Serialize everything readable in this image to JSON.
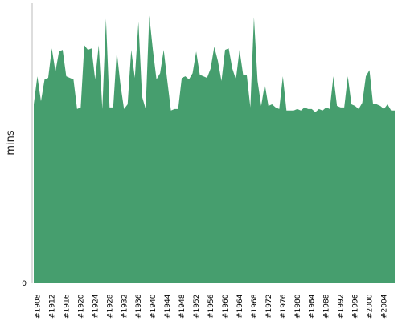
{
  "chart_data": {
    "type": "area",
    "title": "",
    "xlabel": "",
    "ylabel": "mins",
    "color": "#469e6e",
    "grid": false,
    "legend": "none",
    "ylim": [
      0,
      180
    ],
    "y_tick_labels": [
      "0"
    ],
    "x_tick_labels": [
      "#1908",
      "#1912",
      "#1916",
      "#1920",
      "#1924",
      "#1928",
      "#1932",
      "#1936",
      "#1940",
      "#1944",
      "#1948",
      "#1952",
      "#1956",
      "#1960",
      "#1964",
      "#1968",
      "#1972",
      "#1976",
      "#1980",
      "#1984",
      "#1988",
      "#1992",
      "#1996",
      "#2000",
      "#2004"
    ],
    "x_start": 1907,
    "x_end": 2007,
    "points": [
      [
        1907,
        115
      ],
      [
        1908,
        133
      ],
      [
        1909,
        117
      ],
      [
        1910,
        131
      ],
      [
        1911,
        132
      ],
      [
        1912,
        151
      ],
      [
        1913,
        136
      ],
      [
        1914,
        149
      ],
      [
        1915,
        150
      ],
      [
        1916,
        133
      ],
      [
        1917,
        132
      ],
      [
        1918,
        131
      ],
      [
        1919,
        112
      ],
      [
        1920,
        113
      ],
      [
        1921,
        153
      ],
      [
        1922,
        150
      ],
      [
        1923,
        151
      ],
      [
        1924,
        131
      ],
      [
        1925,
        153
      ],
      [
        1926,
        112
      ],
      [
        1927,
        170
      ],
      [
        1928,
        113
      ],
      [
        1929,
        113
      ],
      [
        1930,
        149
      ],
      [
        1931,
        128
      ],
      [
        1932,
        112
      ],
      [
        1933,
        115
      ],
      [
        1934,
        150
      ],
      [
        1935,
        132
      ],
      [
        1936,
        168
      ],
      [
        1937,
        120
      ],
      [
        1938,
        112
      ],
      [
        1939,
        172
      ],
      [
        1940,
        150
      ],
      [
        1941,
        131
      ],
      [
        1942,
        135
      ],
      [
        1943,
        150
      ],
      [
        1944,
        130
      ],
      [
        1945,
        111
      ],
      [
        1946,
        112
      ],
      [
        1947,
        112
      ],
      [
        1948,
        132
      ],
      [
        1949,
        133
      ],
      [
        1950,
        131
      ],
      [
        1951,
        135
      ],
      [
        1952,
        149
      ],
      [
        1953,
        134
      ],
      [
        1954,
        133
      ],
      [
        1955,
        132
      ],
      [
        1956,
        138
      ],
      [
        1957,
        152
      ],
      [
        1958,
        143
      ],
      [
        1959,
        130
      ],
      [
        1960,
        150
      ],
      [
        1961,
        151
      ],
      [
        1962,
        138
      ],
      [
        1963,
        131
      ],
      [
        1964,
        150
      ],
      [
        1965,
        134
      ],
      [
        1966,
        134
      ],
      [
        1967,
        113
      ],
      [
        1968,
        171
      ],
      [
        1969,
        130
      ],
      [
        1970,
        114
      ],
      [
        1971,
        128
      ],
      [
        1972,
        114
      ],
      [
        1973,
        115
      ],
      [
        1974,
        113
      ],
      [
        1975,
        112
      ],
      [
        1976,
        133
      ],
      [
        1977,
        111
      ],
      [
        1978,
        111
      ],
      [
        1979,
        111
      ],
      [
        1980,
        112
      ],
      [
        1981,
        111
      ],
      [
        1982,
        113
      ],
      [
        1983,
        112
      ],
      [
        1984,
        112
      ],
      [
        1985,
        110
      ],
      [
        1986,
        112
      ],
      [
        1987,
        111
      ],
      [
        1988,
        113
      ],
      [
        1989,
        112
      ],
      [
        1990,
        133
      ],
      [
        1991,
        114
      ],
      [
        1992,
        113
      ],
      [
        1993,
        113
      ],
      [
        1994,
        133
      ],
      [
        1995,
        115
      ],
      [
        1996,
        114
      ],
      [
        1997,
        112
      ],
      [
        1998,
        116
      ],
      [
        1999,
        133
      ],
      [
        2000,
        137
      ],
      [
        2001,
        115
      ],
      [
        2002,
        115
      ],
      [
        2003,
        114
      ],
      [
        2004,
        112
      ],
      [
        2005,
        115
      ],
      [
        2006,
        111
      ],
      [
        2007,
        111
      ]
    ]
  }
}
